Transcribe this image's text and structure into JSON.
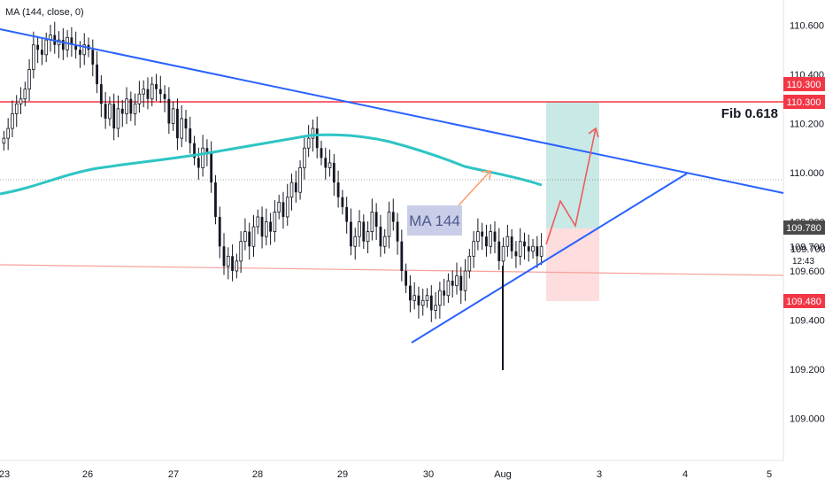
{
  "indicator_label": "MA (144, close, 0)",
  "colors": {
    "bull": "#131722",
    "bear": "#131722",
    "ma": "#2ec4c4",
    "trendline": "#2962ff",
    "fib_line": "#f23645",
    "support_line": "#f7a09a",
    "tp_zone": "#b2dfdb",
    "sl_zone": "#fcd4d4",
    "badge_red": "#f23645",
    "badge_gray": "#4a4a4a",
    "arrow_orange": "#ff9c6b",
    "arrow_red": "#ef5a5a",
    "ma_box": "#c9cde8"
  },
  "chart_data": {
    "type": "candlestick",
    "ylim": [
      108.85,
      110.7
    ],
    "y_ticks": [
      "110.600",
      "110.400",
      "110.200",
      "110.000",
      "109.800",
      "109.700",
      "109.600",
      "109.400",
      "109.200",
      "109.000"
    ],
    "y_ticks_values": [
      110.6,
      110.4,
      110.2,
      110.0,
      109.8,
      109.7,
      109.6,
      109.4,
      109.2,
      109.0
    ],
    "x_ticks": [
      "23",
      "26",
      "27",
      "28",
      "29",
      "30",
      "Aug",
      "3",
      "4",
      "5"
    ],
    "fib_level": 110.3,
    "fib_label": "Fib 0.618",
    "entry": 109.78,
    "target": 110.3,
    "stop": 109.48,
    "current_price": "109.700",
    "countdown": "12:43",
    "badges": [
      "110.300",
      "110.300",
      "109.780",
      "109.480"
    ],
    "ma_label": "MA 144",
    "series_close": [
      110.14,
      110.18,
      110.24,
      110.28,
      110.3,
      110.34,
      110.42,
      110.52,
      110.5,
      110.48,
      110.54,
      110.56,
      110.52,
      110.54,
      110.5,
      110.55,
      110.52,
      110.5,
      110.48,
      110.52,
      110.5,
      110.44,
      110.36,
      110.28,
      110.22,
      110.28,
      110.18,
      110.26,
      110.24,
      110.3,
      110.24,
      110.28,
      110.32,
      110.34,
      110.3,
      110.36,
      110.34,
      110.32,
      110.3,
      110.2,
      110.26,
      110.14,
      110.22,
      110.18,
      110.12,
      110.06,
      110.02,
      110.1,
      110.08,
      109.96,
      109.82,
      109.7,
      109.62,
      109.66,
      109.6,
      109.64,
      109.72,
      109.76,
      109.7,
      109.78,
      109.82,
      109.74,
      109.8,
      109.76,
      109.84,
      109.88,
      109.82,
      109.9,
      109.96,
      109.92,
      110.02,
      110.1,
      110.14,
      110.18,
      110.1,
      110.06,
      110.02,
      110.04,
      109.96,
      109.9,
      109.86,
      109.8,
      109.7,
      109.74,
      109.8,
      109.72,
      109.76,
      109.84,
      109.78,
      109.7,
      109.74,
      109.84,
      109.8,
      109.72,
      109.6,
      109.54,
      109.48,
      109.5,
      109.46,
      109.48,
      109.5,
      109.44,
      109.46,
      109.52,
      109.5,
      109.56,
      109.54,
      109.58,
      109.52,
      109.6,
      109.66,
      109.72,
      109.76,
      109.74,
      109.7,
      109.76,
      109.72,
      109.64,
      109.7,
      109.74,
      109.68,
      109.66,
      109.72,
      109.7,
      109.68,
      109.7,
      109.66,
      109.7
    ]
  }
}
